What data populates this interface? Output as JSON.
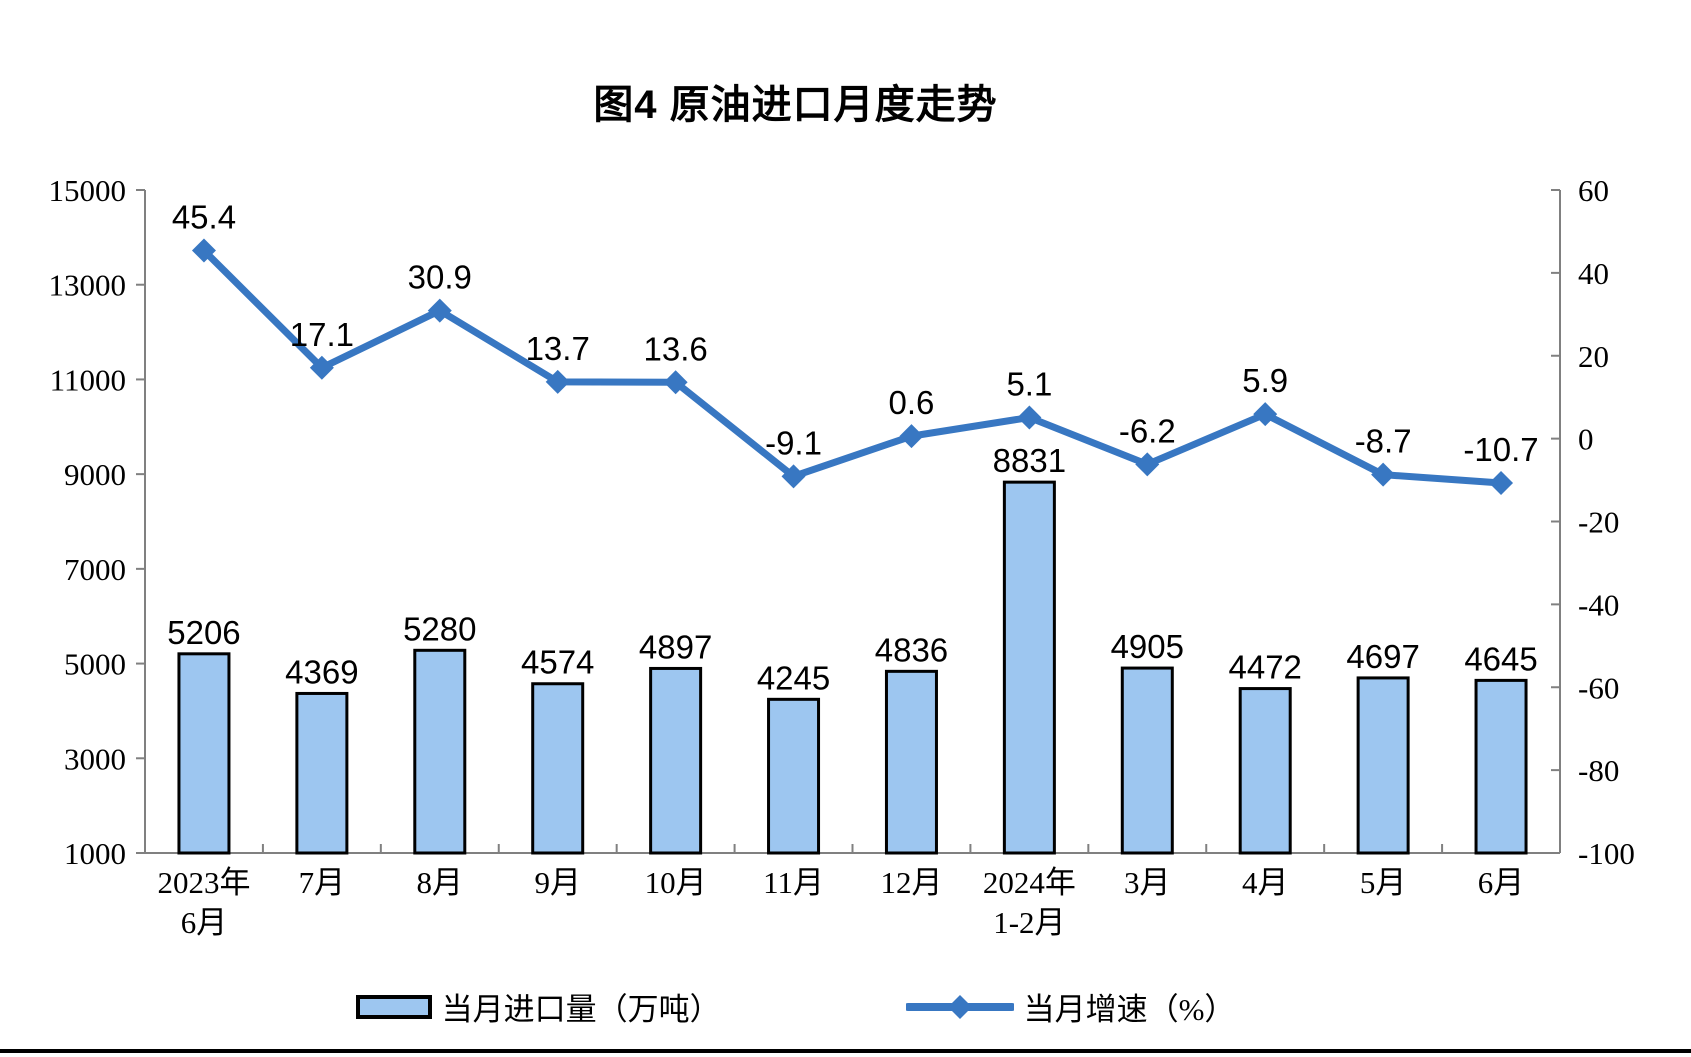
{
  "title": "图4 原油进口月度走势",
  "chart_data": {
    "type": "bar+line combo",
    "categories": [
      "2023年|6月",
      "7月",
      "8月",
      "9月",
      "10月",
      "11月",
      "12月",
      "2024年|1-2月",
      "3月",
      "4月",
      "5月",
      "6月"
    ],
    "series": [
      {
        "name": "当月进口量（万吨）",
        "type": "bar",
        "axis": "left",
        "values": [
          5206,
          4369,
          5280,
          4574,
          4897,
          4245,
          4836,
          8831,
          4905,
          4472,
          4697,
          4645
        ]
      },
      {
        "name": "当月增速（%）",
        "type": "line",
        "axis": "right",
        "values": [
          45.4,
          17.1,
          30.9,
          13.7,
          13.6,
          -9.1,
          0.6,
          5.1,
          -6.2,
          5.9,
          -8.7,
          -10.7
        ]
      }
    ],
    "left_axis": {
      "min": 1000,
      "max": 15000,
      "step": 2000,
      "ticks": [
        1000,
        3000,
        5000,
        7000,
        9000,
        11000,
        13000,
        15000
      ]
    },
    "right_axis": {
      "min": -100,
      "max": 60,
      "step": 20,
      "ticks": [
        -100,
        -80,
        -60,
        -40,
        -20,
        0,
        20,
        40,
        60
      ]
    },
    "grid": false,
    "legend_position": "bottom",
    "data_labels": true
  },
  "legend": {
    "bar_label": "当月进口量（万吨）",
    "line_label": "当月增速（%）"
  },
  "colors": {
    "bar_fill": "#9DC6F0",
    "bar_border": "#000000",
    "line": "#3877C2",
    "axis": "#808080",
    "text": "#000000",
    "background": "#FFFFFF"
  }
}
